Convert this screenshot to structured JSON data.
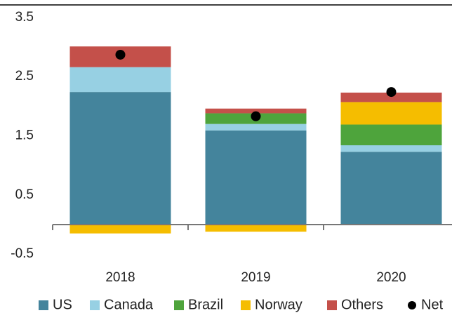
{
  "chart_data": {
    "type": "bar",
    "stacked": true,
    "categories": [
      "2018",
      "2019",
      "2020"
    ],
    "series": [
      {
        "name": "US",
        "color": "#44849c",
        "values": [
          2.24,
          1.59,
          1.23
        ]
      },
      {
        "name": "Canada",
        "color": "#97d0e3",
        "values": [
          0.42,
          0.11,
          0.11
        ]
      },
      {
        "name": "Brazil",
        "color": "#4ea43c",
        "values": [
          0,
          0.18,
          0.35
        ]
      },
      {
        "name": "Norway",
        "color": "#f5bd00",
        "values": [
          -0.15,
          -0.12,
          0.38
        ]
      },
      {
        "name": "Others",
        "color": "#c4504a",
        "values": [
          0.35,
          0.08,
          0.16
        ]
      },
      {
        "name": "Net",
        "color": "#000000",
        "type": "scatter",
        "values": [
          2.87,
          1.83,
          2.24
        ]
      }
    ],
    "ylim": [
      -0.7,
      3.7
    ],
    "yticks": [
      3.5,
      2.5,
      1.5,
      0.5,
      -0.5
    ],
    "grid": false
  }
}
